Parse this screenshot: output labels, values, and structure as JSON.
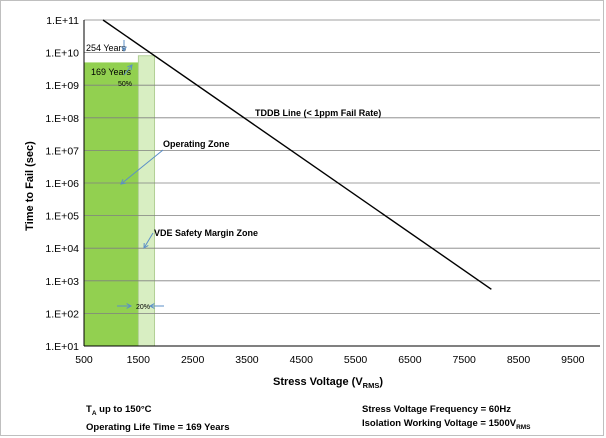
{
  "chart_data": {
    "type": "line",
    "xlabel": "Stress Voltage",
    "xlabel_sub": "RMS",
    "ylabel": "Time to Fail (sec)",
    "xlim": [
      500,
      10000
    ],
    "ylim": [
      10,
      100000000000
    ],
    "yscale": "log",
    "grid": true,
    "x_ticks": [
      "500",
      "1500",
      "2500",
      "3500",
      "4500",
      "5500",
      "6500",
      "7500",
      "8500",
      "9500"
    ],
    "x_tick_values": [
      500,
      1500,
      2500,
      3500,
      4500,
      5500,
      6500,
      7500,
      8500,
      9500
    ],
    "y_ticks": [
      "1.E+01",
      "1.E+02",
      "1.E+03",
      "1.E+04",
      "1.E+05",
      "1.E+06",
      "1.E+07",
      "1.E+08",
      "1.E+09",
      "1.E+10",
      "1.E+11"
    ],
    "y_tick_values": [
      10,
      100,
      1000,
      10000,
      100000,
      1000000,
      10000000,
      100000000,
      1000000000,
      10000000000,
      100000000000
    ],
    "series": [
      {
        "name": "TDDB Line (< 1ppm Fail Rate)",
        "x": [
          850,
          8000
        ],
        "y": [
          100000000000,
          550
        ],
        "color": "#000000"
      }
    ],
    "zones": [
      {
        "name": "Operating Zone",
        "x": [
          500,
          1500
        ],
        "y_top": 5000000000,
        "color": "#92d050"
      },
      {
        "name": "VDE Safety Margin Zone",
        "x": [
          1500,
          1800
        ],
        "y_top": 8000000000,
        "color": "#d8eec2"
      }
    ],
    "annotations": {
      "years_254": "254 Years",
      "years_169": "169 Years",
      "pct_50": "50%",
      "pct_20": "20%",
      "operating_zone": "Operating  Zone",
      "vde_zone": "VDE Safety Margin Zone",
      "tddb_label": "TDDB Line (< 1ppm Fail Rate)"
    },
    "colors": {
      "operating": "#92d050",
      "margin": "#d8eec2",
      "arrow": "#5b8fc7",
      "grid": "#808080"
    }
  },
  "footer": {
    "ta_prefix": "T",
    "ta_sub": "A",
    "ta_text": " up to 150°C",
    "life": "Operating Life Time = 169 Years",
    "freq": "Stress Voltage Frequency = 60Hz",
    "iso_text": "Isolation Working Voltage = 1500V",
    "iso_sub": "RMS"
  }
}
